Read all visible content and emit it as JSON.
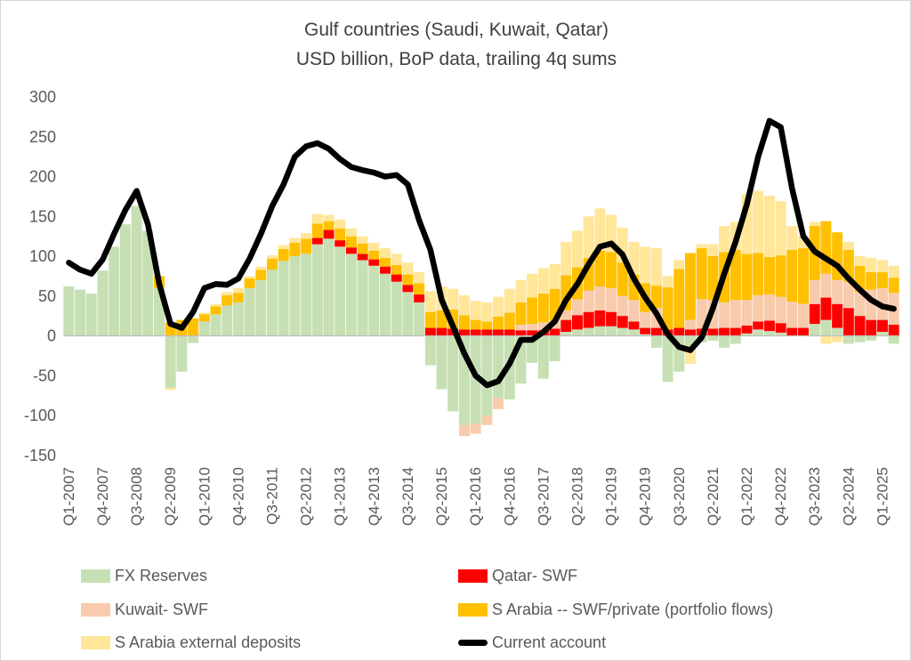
{
  "title": {
    "line1": "Gulf countries (Saudi, Kuwait, Qatar)",
    "line2": "USD billion, BoP data, trailing 4q sums"
  },
  "chart_data": {
    "type": "bar",
    "subtype": "stacked-bars-with-line-overlay",
    "title": "Gulf countries (Saudi, Kuwait, Qatar)",
    "subtitle": "USD billion, BoP data, trailing 4q sums",
    "xlabel": "",
    "ylabel": "",
    "grid": false,
    "legend_position": "bottom",
    "y_axis": {
      "min": -150,
      "max": 300,
      "step": 50,
      "ticks": [
        300,
        250,
        200,
        150,
        100,
        50,
        0,
        -50,
        -100,
        -150
      ]
    },
    "x_tick_every": 3,
    "categories": [
      "Q1-2007",
      "Q2-2007",
      "Q3-2007",
      "Q4-2007",
      "Q1-2008",
      "Q2-2008",
      "Q3-2008",
      "Q4-2008",
      "Q1-2009",
      "Q2-2009",
      "Q3-2009",
      "Q4-2009",
      "Q1-2010",
      "Q2-2010",
      "Q3-2010",
      "Q4-2010",
      "Q1-2011",
      "Q2-2011",
      "Q3-2011",
      "Q4-2011",
      "Q1-2012",
      "Q2-2012",
      "Q3-2012",
      "Q4-2012",
      "Q1-2013",
      "Q2-2013",
      "Q3-2013",
      "Q4-2013",
      "Q1-2014",
      "Q2-2014",
      "Q3-2014",
      "Q4-2014",
      "Q1-2015",
      "Q2-2015",
      "Q3-2015",
      "Q4-2015",
      "Q1-2016",
      "Q2-2016",
      "Q3-2016",
      "Q4-2016",
      "Q1-2017",
      "Q2-2017",
      "Q3-2017",
      "Q4-2017",
      "Q1-2018",
      "Q2-2018",
      "Q3-2018",
      "Q4-2018",
      "Q1-2019",
      "Q2-2019",
      "Q3-2019",
      "Q4-2019",
      "Q1-2020",
      "Q2-2020",
      "Q3-2020",
      "Q4-2020",
      "Q1-2021",
      "Q2-2021",
      "Q3-2021",
      "Q4-2021",
      "Q1-2022",
      "Q2-2022",
      "Q3-2022",
      "Q4-2022",
      "Q1-2023",
      "Q2-2023",
      "Q3-2023",
      "Q4-2023",
      "Q1-2024",
      "Q2-2024",
      "Q3-2024",
      "Q4-2024",
      "Q1-2025",
      "Q2-2025"
    ],
    "series": [
      {
        "name": "FX Reserves",
        "type": "bar",
        "color": "#c6e0b4",
        "values": [
          62,
          58,
          53,
          82,
          112,
          140,
          163,
          132,
          60,
          -65,
          -45,
          -9,
          18,
          27,
          38,
          42,
          60,
          70,
          83,
          94,
          100,
          103,
          115,
          122,
          112,
          103,
          95,
          88,
          78,
          68,
          55,
          42,
          -37,
          -67,
          -95,
          -112,
          -110,
          -100,
          -78,
          -80,
          -60,
          -34,
          -54,
          -32,
          5,
          8,
          10,
          12,
          12,
          10,
          8,
          2,
          -15,
          -58,
          -45,
          -13,
          -8,
          -6,
          -15,
          -10,
          3,
          8,
          6,
          4,
          0,
          0,
          15,
          20,
          10,
          -10,
          -8,
          -6,
          5,
          -10
        ]
      },
      {
        "name": "Qatar- SWF",
        "type": "bar",
        "color": "#ff0000",
        "values": [
          0,
          0,
          0,
          0,
          0,
          0,
          0,
          0,
          0,
          0,
          0,
          0,
          0,
          0,
          0,
          0,
          0,
          0,
          0,
          0,
          0,
          0,
          8,
          11,
          8,
          8,
          8,
          8,
          9,
          9,
          9,
          10,
          10,
          10,
          9,
          8,
          8,
          8,
          8,
          8,
          7,
          7,
          7,
          9,
          15,
          18,
          20,
          20,
          18,
          15,
          10,
          8,
          10,
          8,
          10,
          8,
          9,
          9,
          10,
          10,
          10,
          10,
          13,
          12,
          10,
          10,
          25,
          28,
          30,
          35,
          25,
          20,
          15,
          14
        ]
      },
      {
        "name": "Kuwait- SWF",
        "type": "bar",
        "color": "#f8cbad",
        "values": [
          0,
          0,
          0,
          0,
          0,
          0,
          0,
          0,
          0,
          0,
          0,
          0,
          0,
          0,
          0,
          0,
          0,
          0,
          0,
          0,
          0,
          0,
          0,
          0,
          0,
          0,
          0,
          0,
          0,
          0,
          0,
          0,
          0,
          0,
          0,
          -14,
          -13,
          -12,
          -14,
          0,
          7,
          8,
          10,
          11,
          12,
          20,
          27,
          30,
          30,
          25,
          27,
          20,
          25,
          0,
          0,
          12,
          37,
          36,
          32,
          35,
          32,
          33,
          33,
          33,
          33,
          30,
          30,
          30,
          30,
          33,
          30,
          38,
          40,
          40
        ]
      },
      {
        "name": "S Arabia -- SWF/private (portfolio flows)",
        "type": "bar",
        "color": "#ffc000",
        "values": [
          0,
          0,
          0,
          0,
          0,
          0,
          0,
          0,
          15,
          17,
          20,
          22,
          9,
          10,
          13,
          12,
          12,
          13,
          14,
          15,
          17,
          19,
          18,
          11,
          15,
          14,
          13,
          11,
          11,
          12,
          13,
          14,
          20,
          22,
          24,
          18,
          12,
          10,
          16,
          21,
          28,
          33,
          36,
          39,
          44,
          40,
          41,
          45,
          45,
          42,
          32,
          36,
          28,
          53,
          74,
          84,
          64,
          55,
          63,
          63,
          58,
          53,
          47,
          52,
          65,
          70,
          68,
          66,
          60,
          40,
          33,
          22,
          20,
          19
        ]
      },
      {
        "name": "S Arabia external deposits",
        "type": "bar",
        "color": "#ffe699",
        "values": [
          0,
          0,
          0,
          0,
          0,
          0,
          0,
          0,
          0,
          -3,
          0,
          0,
          2,
          3,
          4,
          6,
          3,
          4,
          4,
          5,
          6,
          7,
          12,
          8,
          11,
          10,
          9,
          10,
          12,
          14,
          15,
          14,
          26,
          30,
          26,
          25,
          24,
          24,
          25,
          30,
          28,
          30,
          32,
          31,
          42,
          46,
          52,
          53,
          47,
          44,
          41,
          46,
          47,
          14,
          11,
          -22,
          5,
          15,
          33,
          35,
          75,
          78,
          77,
          68,
          30,
          15,
          5,
          -10,
          -8,
          10,
          12,
          18,
          15,
          15
        ]
      },
      {
        "name": "Current account",
        "type": "line",
        "color": "#000000",
        "values": [
          92,
          83,
          78,
          96,
          128,
          158,
          182,
          140,
          65,
          15,
          10,
          30,
          60,
          65,
          64,
          72,
          97,
          128,
          163,
          190,
          225,
          238,
          242,
          235,
          222,
          212,
          208,
          205,
          200,
          202,
          190,
          145,
          108,
          45,
          12,
          -22,
          -50,
          -62,
          -57,
          -35,
          -5,
          -5,
          5,
          18,
          45,
          65,
          90,
          112,
          116,
          102,
          72,
          48,
          28,
          2,
          -14,
          -18,
          -2,
          35,
          78,
          118,
          165,
          225,
          270,
          262,
          185,
          125,
          106,
          97,
          88,
          72,
          58,
          45,
          37,
          34
        ]
      }
    ],
    "layout": {
      "plot_left": 70,
      "plot_right": 1010,
      "zero_y": 376.5,
      "top_y": 108,
      "x_label_anchor_y": 524,
      "zero_line_color": "#bfbfbf"
    }
  }
}
